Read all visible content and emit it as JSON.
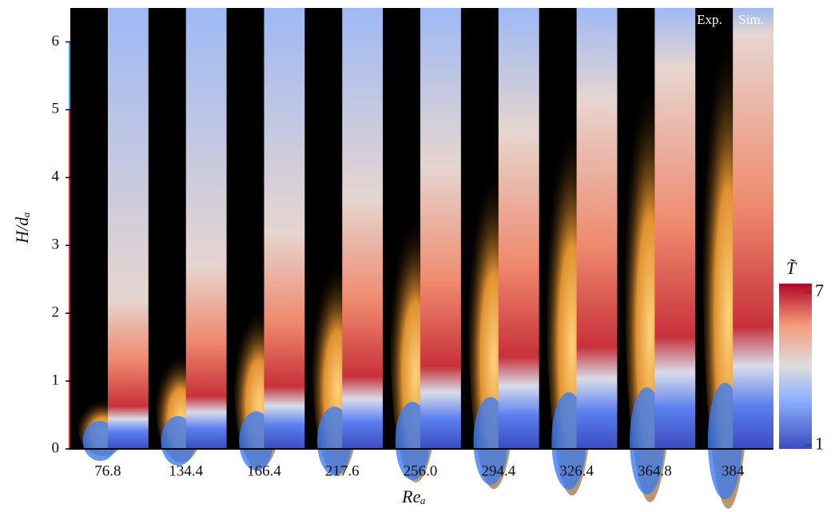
{
  "chart_data": {
    "type": "image-panels",
    "x_label": "Reₐ",
    "y_label": "H/dₐ",
    "categories": [
      "76.8",
      "134.4",
      "166.4",
      "217.6",
      "256.0",
      "294.4",
      "326.4",
      "364.8",
      "384"
    ],
    "ylim": [
      0,
      6.5
    ],
    "yticks": [
      0,
      1,
      2,
      3,
      4,
      5,
      6
    ],
    "panel_labels": [
      "Exp.",
      "Sim."
    ],
    "colorbar": {
      "label": "T̃",
      "clim": [
        0.85,
        7.35
      ],
      "ticks": [
        1,
        7
      ]
    }
  }
}
